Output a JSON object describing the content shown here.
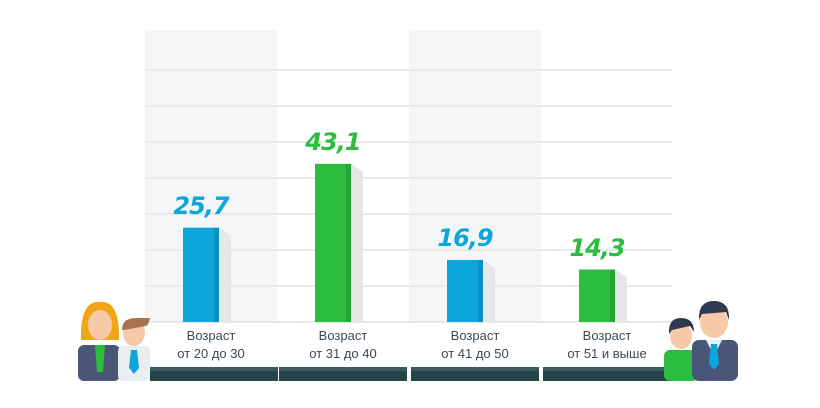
{
  "chart_data": {
    "type": "bar",
    "title": "",
    "xlabel": "",
    "ylabel": "",
    "categories": [
      {
        "line1": "Возраст",
        "line2": "от 20 до 30"
      },
      {
        "line1": "Возраст",
        "line2": "от 31 до 40"
      },
      {
        "line1": "Возраст",
        "line2": "от 41 до 50"
      },
      {
        "line1": "Возраст",
        "line2": "от 51 и выше"
      }
    ],
    "values": [
      25.7,
      43.1,
      16.9,
      14.3
    ],
    "value_labels": [
      "25,7",
      "43,1",
      "16,9",
      "14,3"
    ],
    "colors": [
      "#0aa6dc",
      "#2dbd3e",
      "#0aa6dc",
      "#2dbd3e"
    ],
    "ylim": [
      0,
      70
    ],
    "grid": true,
    "legend": "none"
  },
  "icons": {
    "left": "young-people-icon",
    "right": "older-people-icon"
  }
}
